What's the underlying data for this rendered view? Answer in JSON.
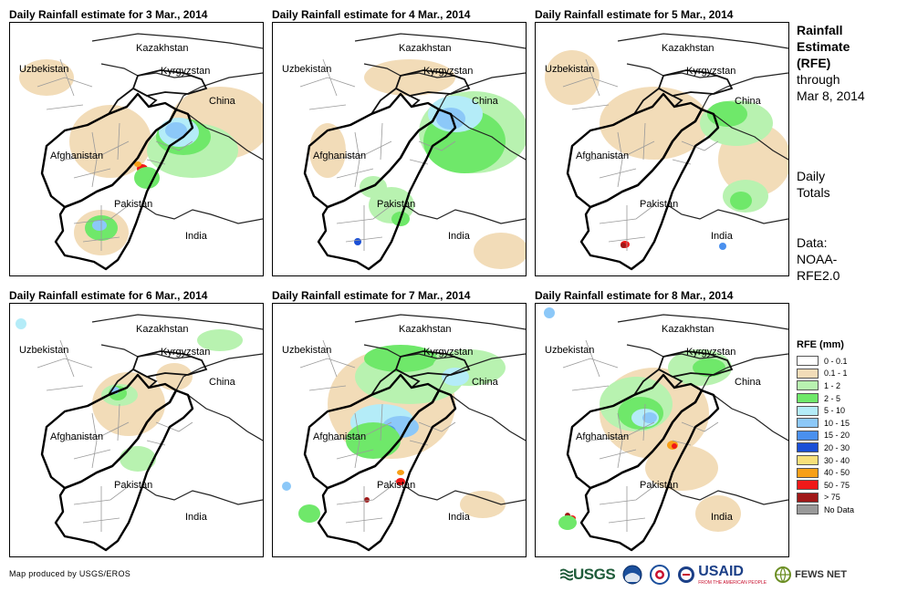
{
  "panels": [
    {
      "title": "Daily Rainfall estimate for 3 Mar., 2014",
      "id": "mar3"
    },
    {
      "title": "Daily Rainfall estimate for 4 Mar., 2014",
      "id": "mar4"
    },
    {
      "title": "Daily Rainfall estimate for 5 Mar., 2014",
      "id": "mar5"
    },
    {
      "title": "Daily Rainfall estimate for 6 Mar., 2014",
      "id": "mar6"
    },
    {
      "title": "Daily Rainfall estimate for 7 Mar., 2014",
      "id": "mar7"
    },
    {
      "title": "Daily Rainfall estimate for 8 Mar., 2014",
      "id": "mar8"
    }
  ],
  "country_labels": {
    "kazakhstan": "Kazakhstan",
    "uzbekistan": "Uzbekistan",
    "kyrgyzstan": "Kyrgyzstan",
    "china": "China",
    "afghanistan": "Afghanistan",
    "pakistan": "Pakistan",
    "india": "India"
  },
  "side": {
    "title_line1": "Rainfall",
    "title_line2": "Estimate",
    "title_line3": "(RFE)",
    "title_line4": "through",
    "title_line5": "Mar 8, 2014",
    "totals_line1": "Daily",
    "totals_line2": "Totals",
    "data_line1": "Data:",
    "data_line2": "NOAA-",
    "data_line3": "RFE2.0"
  },
  "legend": {
    "title": "RFE (mm)",
    "items": [
      {
        "label": "0 - 0.1",
        "color": "#ffffff"
      },
      {
        "label": "0.1 - 1",
        "color": "#f2dcb8"
      },
      {
        "label": "1 - 2",
        "color": "#b8f2b0"
      },
      {
        "label": "2 - 5",
        "color": "#6fe86a"
      },
      {
        "label": "5 - 10",
        "color": "#b4ecf8"
      },
      {
        "label": "10 - 15",
        "color": "#8cc8f8"
      },
      {
        "label": "15 - 20",
        "color": "#4a90ee"
      },
      {
        "label": "20 - 30",
        "color": "#1a4fd6"
      },
      {
        "label": "30 - 40",
        "color": "#f8e07a"
      },
      {
        "label": "40 - 50",
        "color": "#f8a018"
      },
      {
        "label": "50 - 75",
        "color": "#f01818"
      },
      {
        "label": "> 75",
        "color": "#a01818"
      },
      {
        "label": "No Data",
        "color": "#999999"
      }
    ]
  },
  "footer": {
    "credit": "Map produced by USGS/EROS",
    "usgs": "USGS",
    "usaid": "USAID",
    "usaid_tag": "FROM THE AMERICAN PEOPLE",
    "fews": "FEWS NET"
  }
}
